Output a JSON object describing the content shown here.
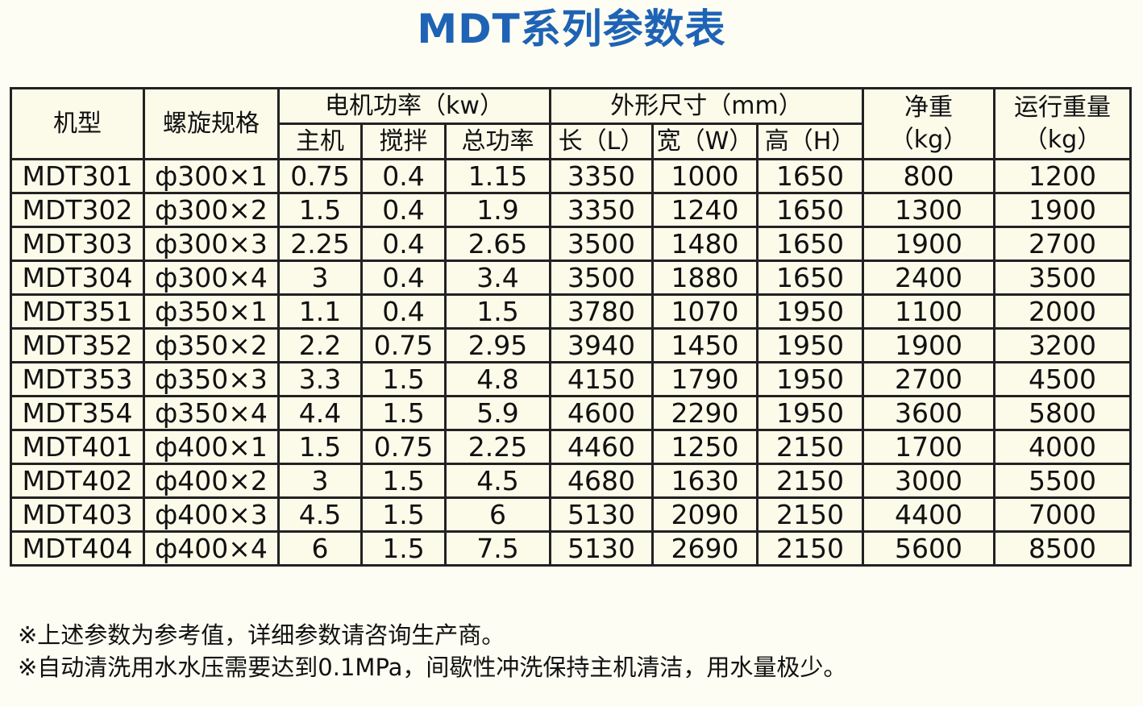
{
  "title": "MDT系列参数表",
  "table": {
    "headers": {
      "model": "机型",
      "spiral": "螺旋规格",
      "motor_power": "电机功率（kw）",
      "main": "主机",
      "stir": "搅拌",
      "total": "总功率",
      "dimensions": "外形尺寸（mm）",
      "length": "长（L）",
      "width": "宽（W）",
      "height": "高（H）",
      "net_weight_line1": "净重",
      "net_weight_line2": "（kg）",
      "run_weight_line1": "运行重量",
      "run_weight_line2": "（kg）"
    },
    "rows": [
      [
        "MDT301",
        "ф300×1",
        "0.75",
        "0.4",
        "1.15",
        "3350",
        "1000",
        "1650",
        "800",
        "1200"
      ],
      [
        "MDT302",
        "ф300×2",
        "1.5",
        "0.4",
        "1.9",
        "3350",
        "1240",
        "1650",
        "1300",
        "1900"
      ],
      [
        "MDT303",
        "ф300×3",
        "2.25",
        "0.4",
        "2.65",
        "3500",
        "1480",
        "1650",
        "1900",
        "2700"
      ],
      [
        "MDT304",
        "ф300×4",
        "3",
        "0.4",
        "3.4",
        "3500",
        "1880",
        "1650",
        "2400",
        "3500"
      ],
      [
        "MDT351",
        "ф350×1",
        "1.1",
        "0.4",
        "1.5",
        "3780",
        "1070",
        "1950",
        "1100",
        "2000"
      ],
      [
        "MDT352",
        "ф350×2",
        "2.2",
        "0.75",
        "2.95",
        "3940",
        "1450",
        "1950",
        "1900",
        "3200"
      ],
      [
        "MDT353",
        "ф350×3",
        "3.3",
        "1.5",
        "4.8",
        "4150",
        "1790",
        "1950",
        "2700",
        "4500"
      ],
      [
        "MDT354",
        "ф350×4",
        "4.4",
        "1.5",
        "5.9",
        "4600",
        "2290",
        "1950",
        "3600",
        "5800"
      ],
      [
        "MDT401",
        "ф400×1",
        "1.5",
        "0.75",
        "2.25",
        "4460",
        "1250",
        "2150",
        "1700",
        "4000"
      ],
      [
        "MDT402",
        "ф400×2",
        "3",
        "1.5",
        "4.5",
        "4680",
        "1630",
        "2150",
        "3000",
        "5500"
      ],
      [
        "MDT403",
        "ф400×3",
        "4.5",
        "1.5",
        "6",
        "5130",
        "2090",
        "2150",
        "4400",
        "7000"
      ],
      [
        "MDT404",
        "ф400×4",
        "6",
        "1.5",
        "7.5",
        "5130",
        "2690",
        "2150",
        "5600",
        "8500"
      ]
    ]
  },
  "notes": [
    "※上述参数为参考值，详细参数请咨询生产商。",
    "※自动清洗用水水压需要达到0.1MPa，间歇性冲洗保持主机清洁，用水量极少。"
  ]
}
